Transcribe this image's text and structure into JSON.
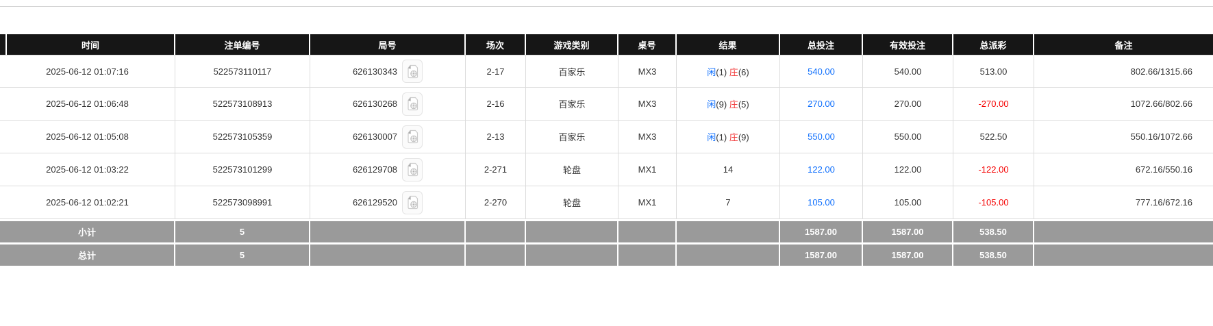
{
  "colors": {
    "header_bg": "#161616",
    "header_text": "#ffffff",
    "body_text": "#333333",
    "link_blue": "#0d6efd",
    "player_blue": "#0d6efd",
    "banker_red": "#f23c3c",
    "negative_red": "#f50000",
    "summary_bg": "#9a9a9a",
    "grid_border": "#dcdcdc"
  },
  "icons": {
    "round_video_icon": "video-file-icon"
  },
  "table": {
    "columns": [
      "时间",
      "注单编号",
      "局号",
      "场次",
      "游戏类别",
      "桌号",
      "结果",
      "总投注",
      "有效投注",
      "总派彩",
      "备注"
    ],
    "rows": [
      {
        "time": "2025-06-12 01:07:16",
        "bet_id": "522573110117",
        "round_id": "626130343",
        "session": "2-17",
        "game_type": "百家乐",
        "table_no": "MX3",
        "result": [
          {
            "text": "闲",
            "color": "blue"
          },
          {
            "text": "(1) ",
            "color": "plain"
          },
          {
            "text": "庄",
            "color": "red"
          },
          {
            "text": "(6)",
            "color": "plain"
          }
        ],
        "total_bet": "540.00",
        "valid_bet": "540.00",
        "total_payout": "513.00",
        "payout_negative": false,
        "remark": "802.66/1315.66"
      },
      {
        "time": "2025-06-12 01:06:48",
        "bet_id": "522573108913",
        "round_id": "626130268",
        "session": "2-16",
        "game_type": "百家乐",
        "table_no": "MX3",
        "result": [
          {
            "text": "闲",
            "color": "blue"
          },
          {
            "text": "(9) ",
            "color": "plain"
          },
          {
            "text": "庄",
            "color": "red"
          },
          {
            "text": "(5)",
            "color": "plain"
          }
        ],
        "total_bet": "270.00",
        "valid_bet": "270.00",
        "total_payout": "-270.00",
        "payout_negative": true,
        "remark": "1072.66/802.66"
      },
      {
        "time": "2025-06-12 01:05:08",
        "bet_id": "522573105359",
        "round_id": "626130007",
        "session": "2-13",
        "game_type": "百家乐",
        "table_no": "MX3",
        "result": [
          {
            "text": "闲",
            "color": "blue"
          },
          {
            "text": "(1) ",
            "color": "plain"
          },
          {
            "text": "庄",
            "color": "red"
          },
          {
            "text": "(9)",
            "color": "plain"
          }
        ],
        "total_bet": "550.00",
        "valid_bet": "550.00",
        "total_payout": "522.50",
        "payout_negative": false,
        "remark": "550.16/1072.66"
      },
      {
        "time": "2025-06-12 01:03:22",
        "bet_id": "522573101299",
        "round_id": "626129708",
        "session": "2-271",
        "game_type": "轮盘",
        "table_no": "MX1",
        "result": [
          {
            "text": "14",
            "color": "plain"
          }
        ],
        "total_bet": "122.00",
        "valid_bet": "122.00",
        "total_payout": "-122.00",
        "payout_negative": true,
        "remark": "672.16/550.16"
      },
      {
        "time": "2025-06-12 01:02:21",
        "bet_id": "522573098991",
        "round_id": "626129520",
        "session": "2-270",
        "game_type": "轮盘",
        "table_no": "MX1",
        "result": [
          {
            "text": "7",
            "color": "plain"
          }
        ],
        "total_bet": "105.00",
        "valid_bet": "105.00",
        "total_payout": "-105.00",
        "payout_negative": true,
        "remark": "777.16/672.16"
      }
    ],
    "summary": [
      {
        "label": "小计",
        "count": "5",
        "total_bet": "1587.00",
        "valid_bet": "1587.00",
        "total_payout": "538.50"
      },
      {
        "label": "总计",
        "count": "5",
        "total_bet": "1587.00",
        "valid_bet": "1587.00",
        "total_payout": "538.50"
      }
    ]
  }
}
